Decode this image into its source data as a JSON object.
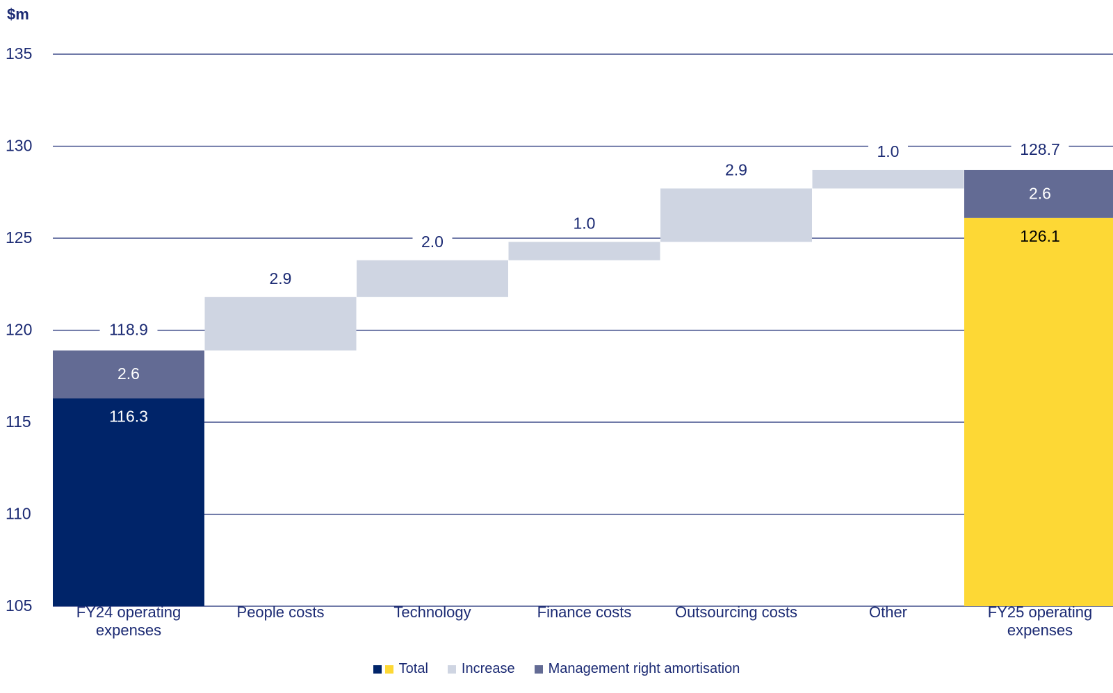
{
  "chart_data": {
    "type": "bar",
    "subtype": "waterfall",
    "ylabel": "$m",
    "ylim": [
      105,
      135
    ],
    "yticks": [
      105,
      110,
      115,
      120,
      125,
      130,
      135
    ],
    "grid": true,
    "categories": [
      "FY24 operating expenses",
      "People costs",
      "Technology",
      "Finance costs",
      "Outsourcing costs",
      "Other",
      "FY25 operating expenses"
    ],
    "steps": [
      {
        "category": "FY24 operating expenses",
        "kind": "total",
        "segments": [
          {
            "series": "Total",
            "value": 116.3,
            "label": "116.3",
            "color": "#002469"
          },
          {
            "series": "Management right amortisation",
            "value": 2.6,
            "label": "2.6",
            "color": "#636b94"
          }
        ],
        "total_label": "118.9"
      },
      {
        "category": "People costs",
        "kind": "increase",
        "value": 2.9,
        "label": "2.9"
      },
      {
        "category": "Technology",
        "kind": "increase",
        "value": 2.0,
        "label": "2.0"
      },
      {
        "category": "Finance costs",
        "kind": "increase",
        "value": 1.0,
        "label": "1.0"
      },
      {
        "category": "Outsourcing costs",
        "kind": "increase",
        "value": 2.9,
        "label": "2.9"
      },
      {
        "category": "Other",
        "kind": "increase",
        "value": 1.0,
        "label": "1.0"
      },
      {
        "category": "FY25 operating expenses",
        "kind": "total",
        "segments": [
          {
            "series": "Total",
            "value": 126.1,
            "label": "126.1",
            "color": "#fdd835"
          },
          {
            "series": "Management right amortisation",
            "value": 2.6,
            "label": "2.6",
            "color": "#636b94"
          }
        ],
        "total_label": "128.7"
      }
    ],
    "category_lines": [
      [
        "FY24 operating",
        "expenses"
      ],
      [
        "People costs"
      ],
      [
        "Technology"
      ],
      [
        "Finance costs"
      ],
      [
        "Outsourcing costs"
      ],
      [
        "Other"
      ],
      [
        "FY25 operating",
        "expenses"
      ]
    ],
    "legend": [
      {
        "name": "Total",
        "colors": [
          "#002469",
          "#fdd835"
        ]
      },
      {
        "name": "Increase",
        "colors": [
          "#cfd5e2"
        ]
      },
      {
        "name": "Management right amortisation",
        "colors": [
          "#636b94"
        ]
      }
    ],
    "legend_placement": "bottom",
    "colors": {
      "increase": "#cfd5e2",
      "grid": "#1b2a73",
      "text": "#1b2a73"
    }
  }
}
